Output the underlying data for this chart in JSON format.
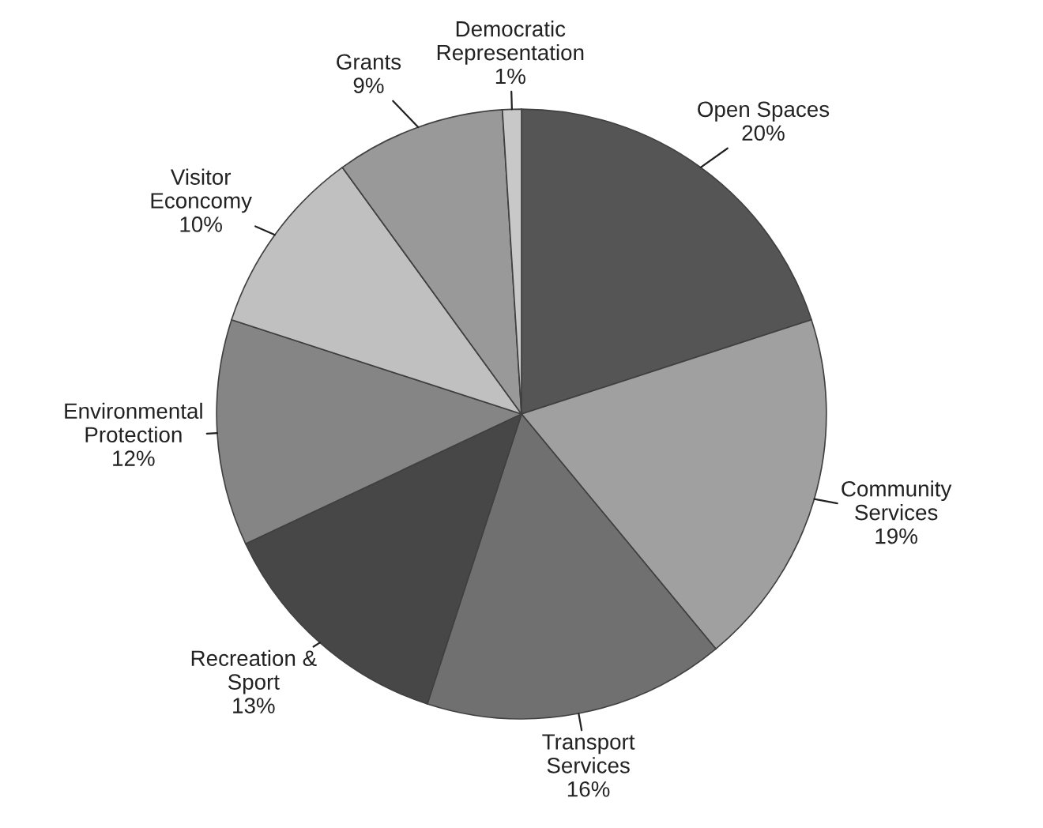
{
  "chart_data": {
    "type": "pie",
    "categories": [
      "Open Spaces",
      "Community Services",
      "Transport Services",
      "Recreation & Sport",
      "Environmental Protection",
      "Visitor Econcomy",
      "Grants",
      "Democratic Representation"
    ],
    "values": [
      20,
      19,
      16,
      13,
      12,
      10,
      9,
      1
    ],
    "value_labels": [
      "20%",
      "19%",
      "16%",
      "13%",
      "12%",
      "10%",
      "9%",
      "1%"
    ],
    "colors": [
      "#555555",
      "#a0a0a0",
      "#707070",
      "#474747",
      "#858585",
      "#c0c0c0",
      "#999999",
      "#c8c8c8"
    ],
    "legend": false
  }
}
